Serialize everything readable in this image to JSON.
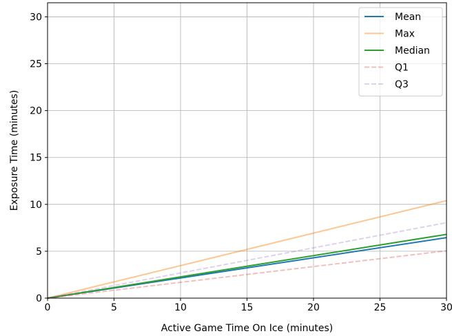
{
  "chart_data": {
    "type": "line",
    "title": "",
    "xlabel": "Active Game Time On Ice (minutes)",
    "ylabel": "Exposure Time (minutes)",
    "xlim": [
      0,
      30
    ],
    "ylim": [
      0,
      31.5
    ],
    "xticks": [
      0,
      5,
      10,
      15,
      20,
      25,
      30
    ],
    "yticks": [
      0,
      5,
      10,
      15,
      20,
      25,
      30
    ],
    "grid": true,
    "legend_position": "top-right",
    "series": [
      {
        "name": "Mean",
        "color": "#1f77b4",
        "style": "solid",
        "alpha": 1.0,
        "x": [
          0,
          30
        ],
        "y": [
          0,
          6.45
        ]
      },
      {
        "name": "Max",
        "color": "#ff7f0e",
        "style": "solid",
        "alpha": 0.45,
        "x": [
          0,
          30
        ],
        "y": [
          0,
          10.4
        ]
      },
      {
        "name": "Median",
        "color": "#2ca02c",
        "style": "solid",
        "alpha": 1.0,
        "x": [
          0,
          30
        ],
        "y": [
          0,
          6.8
        ]
      },
      {
        "name": "Q1",
        "color": "#d62728",
        "style": "dashed",
        "alpha": 0.3,
        "x": [
          0,
          30
        ],
        "y": [
          0,
          5.05
        ]
      },
      {
        "name": "Q3",
        "color": "#9467bd",
        "style": "dashed",
        "alpha": 0.3,
        "x": [
          0,
          30
        ],
        "y": [
          0,
          8.05
        ]
      }
    ]
  }
}
